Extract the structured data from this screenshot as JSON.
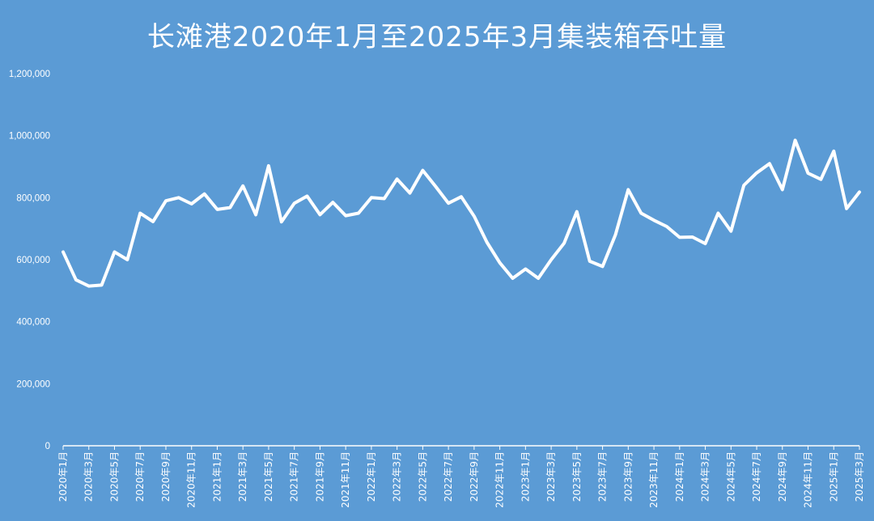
{
  "chart_data": {
    "type": "line",
    "title": "长滩港2020年1月至2025年3月集装箱吞吐量",
    "xlabel": "",
    "ylabel": "",
    "ylim": [
      0,
      1200000
    ],
    "y_ticks": [
      0,
      200000,
      400000,
      600000,
      800000,
      1000000,
      1200000
    ],
    "y_tick_labels": [
      "0",
      "200,000",
      "400,000",
      "600,000",
      "800,000",
      "1,000,000",
      "1,200,000"
    ],
    "grid": false,
    "legend": "none",
    "line_color": "#ffffff",
    "background_color": "#5b9bd5",
    "x_tick_labels": [
      "2020年1月",
      "2020年3月",
      "2020年5月",
      "2020年7月",
      "2020年9月",
      "2020年11月",
      "2021年1月",
      "2021年3月",
      "2021年5月",
      "2021年7月",
      "2021年9月",
      "2021年11月",
      "2022年1月",
      "2022年3月",
      "2022年5月",
      "2022年7月",
      "2022年9月",
      "2022年11月",
      "2023年1月",
      "2023年3月",
      "2023年5月",
      "2023年7月",
      "2023年9月",
      "2023年11月",
      "2024年1月",
      "2024年3月",
      "2024年5月",
      "2024年7月",
      "2024年9月",
      "2024年11月",
      "2025年1月",
      "2025年3月"
    ],
    "x": [
      "2020-01",
      "2020-02",
      "2020-03",
      "2020-04",
      "2020-05",
      "2020-06",
      "2020-07",
      "2020-08",
      "2020-09",
      "2020-10",
      "2020-11",
      "2020-12",
      "2021-01",
      "2021-02",
      "2021-03",
      "2021-04",
      "2021-05",
      "2021-06",
      "2021-07",
      "2021-08",
      "2021-09",
      "2021-10",
      "2021-11",
      "2021-12",
      "2022-01",
      "2022-02",
      "2022-03",
      "2022-04",
      "2022-05",
      "2022-06",
      "2022-07",
      "2022-08",
      "2022-09",
      "2022-10",
      "2022-11",
      "2022-12",
      "2023-01",
      "2023-02",
      "2023-03",
      "2023-04",
      "2023-05",
      "2023-06",
      "2023-07",
      "2023-08",
      "2023-09",
      "2023-10",
      "2023-11",
      "2023-12",
      "2024-01",
      "2024-02",
      "2024-03",
      "2024-04",
      "2024-05",
      "2024-06",
      "2024-07",
      "2024-08",
      "2024-09",
      "2024-10",
      "2024-11",
      "2024-12",
      "2025-01",
      "2025-02",
      "2025-03"
    ],
    "values": [
      625000,
      535000,
      515000,
      518000,
      625000,
      600000,
      750000,
      723000,
      790000,
      800000,
      780000,
      812000,
      762000,
      768000,
      838000,
      745000,
      903000,
      722000,
      782000,
      805000,
      745000,
      785000,
      742000,
      750000,
      800000,
      797000,
      860000,
      815000,
      888000,
      836000,
      782000,
      803000,
      740000,
      656000,
      590000,
      540000,
      570000,
      540000,
      600000,
      653000,
      755000,
      595000,
      578000,
      680000,
      826000,
      750000,
      727000,
      707000,
      672000,
      673000,
      652000,
      750000,
      692000,
      840000,
      880000,
      910000,
      826000,
      985000,
      879000,
      859000,
      950000,
      765000,
      818000
    ]
  }
}
